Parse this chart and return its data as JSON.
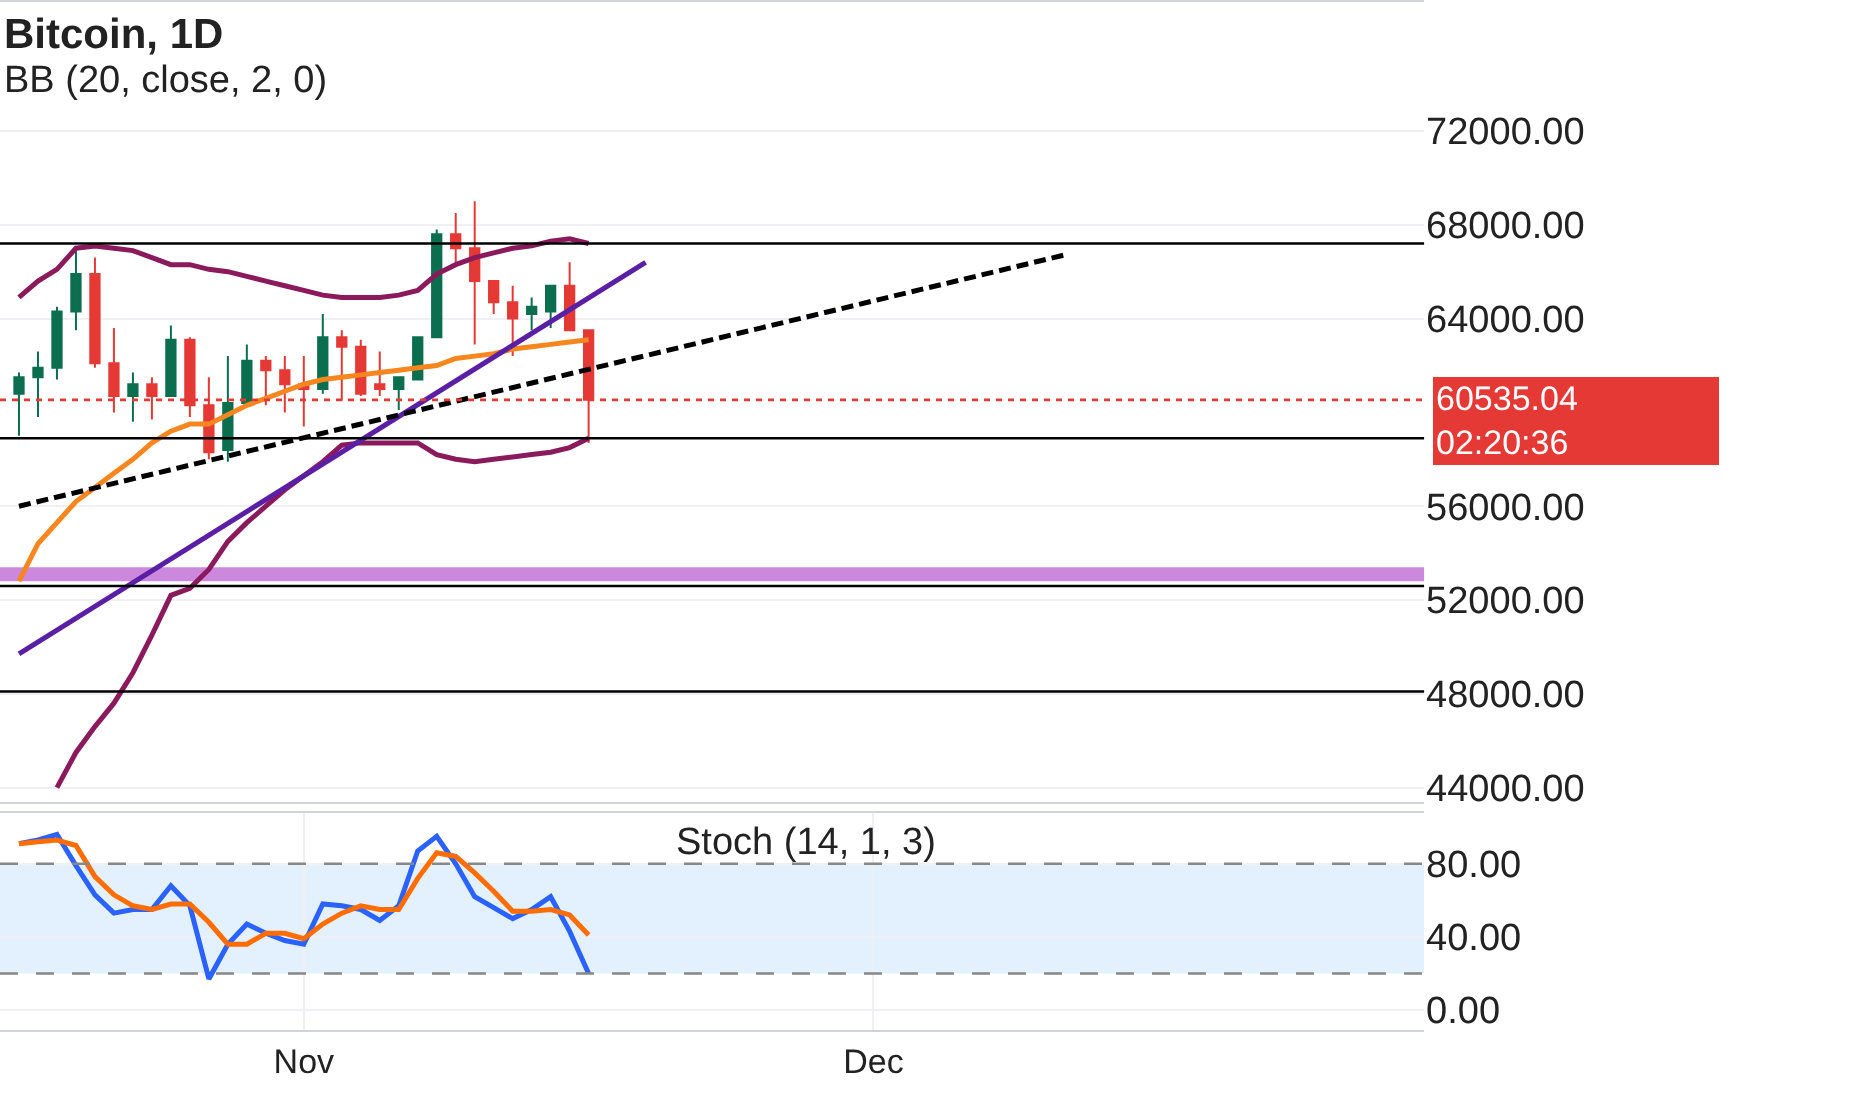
{
  "chart_data": [
    {
      "type": "candlestick",
      "title": "Bitcoin, 1D",
      "subtitle": "BB (20, close, 2, 0)",
      "x": [
        "--10-17",
        "--10-18",
        "--10-19",
        "--10-20",
        "--10-21",
        "--10-22",
        "--10-23",
        "--10-24",
        "--10-25",
        "--10-26",
        "--10-27",
        "--10-28",
        "--10-29",
        "--10-30",
        "--10-31",
        "--11-01",
        "--11-02",
        "--11-03",
        "--11-04",
        "--11-05",
        "--11-06",
        "--11-07",
        "--11-08",
        "--11-09",
        "--11-10",
        "--11-11",
        "--11-12",
        "--11-13",
        "--11-14",
        "--11-15",
        "--11-16"
      ],
      "ohlc": [
        [
          60800,
          61700,
          59000,
          61500
        ],
        [
          61500,
          62600,
          59800,
          61900
        ],
        [
          61900,
          64500,
          61400,
          64300
        ],
        [
          64300,
          67000,
          63500,
          65900
        ],
        [
          65900,
          66600,
          61900,
          62100
        ],
        [
          62100,
          63600,
          60000,
          60700
        ],
        [
          60700,
          61700,
          59600,
          61200
        ],
        [
          61200,
          61500,
          59700,
          60700
        ],
        [
          60700,
          63700,
          60700,
          63100
        ],
        [
          63100,
          63200,
          59800,
          60300
        ],
        [
          60300,
          61500,
          58000,
          58300
        ],
        [
          58400,
          62400,
          57900,
          60400
        ],
        [
          60400,
          62900,
          60300,
          62200
        ],
        [
          62200,
          62400,
          60300,
          61800
        ],
        [
          61800,
          62400,
          60000,
          61200
        ],
        [
          61200,
          62400,
          59400,
          61000
        ],
        [
          61000,
          64200,
          60800,
          63200
        ],
        [
          63200,
          63500,
          60500,
          62800
        ],
        [
          62800,
          63100,
          60700,
          60800
        ],
        [
          61200,
          62600,
          60700,
          61000
        ],
        [
          61000,
          61500,
          60100,
          61500
        ],
        [
          61400,
          63200,
          61400,
          63200
        ],
        [
          63200,
          67800,
          63200,
          67600
        ],
        [
          67600,
          68500,
          66300,
          67000
        ],
        [
          67000,
          69000,
          62900,
          65600
        ],
        [
          65600,
          65600,
          64200,
          64700
        ],
        [
          64700,
          65400,
          62400,
          64000
        ],
        [
          64200,
          64900,
          63500,
          64500
        ],
        [
          64300,
          65400,
          63600,
          65400
        ],
        [
          65400,
          66400,
          63500,
          63500
        ],
        [
          63500,
          63500,
          58700,
          60535
        ]
      ],
      "colors": [
        "#0b6e4f",
        "#0b6e4f",
        "#0b6e4f",
        "#0b6e4f",
        "#e53935",
        "#e53935",
        "#0b6e4f",
        "#e53935",
        "#0b6e4f",
        "#e53935",
        "#e53935",
        "#0b6e4f",
        "#0b6e4f",
        "#e53935",
        "#e53935",
        "#e53935",
        "#0b6e4f",
        "#e53935",
        "#e53935",
        "#e53935",
        "#0b6e4f",
        "#0b6e4f",
        "#0b6e4f",
        "#e53935",
        "#e53935",
        "#e53935",
        "#e53935",
        "#0b6e4f",
        "#0b6e4f",
        "#e53935",
        "#e53935"
      ],
      "series": [
        {
          "type": "line",
          "color": "#f7861e",
          "values": [
            52800,
            54400,
            55300,
            56200,
            56800,
            57400,
            58000,
            58700,
            59200,
            59500,
            59500,
            59900,
            60300,
            60600,
            60900,
            61200,
            61400,
            61500,
            61600,
            61700,
            61800,
            61900,
            62000,
            62300,
            62400,
            62500,
            62700,
            62800,
            62900,
            63000,
            63100
          ]
        },
        {
          "type": "line",
          "color": "#8b1a5c",
          "values": [
            64900,
            65600,
            66100,
            67000,
            67100,
            67000,
            66900,
            66600,
            66300,
            66300,
            66100,
            66000,
            65800,
            65600,
            65400,
            65200,
            65000,
            64900,
            64900,
            64900,
            65000,
            65200,
            65900,
            66300,
            66600,
            66800,
            67000,
            67100,
            67300,
            67400,
            67200
          ]
        },
        {
          "type": "line",
          "color": "#8b1a5c",
          "values": [
            null,
            null,
            44000,
            45500,
            46600,
            47600,
            48900,
            50500,
            52200,
            52500,
            53300,
            54500,
            55300,
            56000,
            56700,
            57300,
            57900,
            58600,
            58700,
            58700,
            58700,
            58700,
            58200,
            58000,
            57900,
            58000,
            58100,
            58200,
            58300,
            58500,
            58900
          ]
        },
        {
          "type": "line",
          "color": "#5b1fa6",
          "x": [
            "--10-17",
            "--11-19"
          ],
          "values": [
            49700,
            66400
          ]
        },
        {
          "type": "line",
          "color": "#000000",
          "line_style": "dashed",
          "x": [
            "--10-17",
            "--12-11"
          ],
          "values": [
            56000,
            66700
          ]
        }
      ],
      "ref_lines": [
        {
          "axis": "y",
          "value": 67200,
          "color": "#000000"
        },
        {
          "axis": "y",
          "value": 58900,
          "color": "#000000"
        },
        {
          "axis": "y",
          "value": 52600,
          "color": "#000000"
        },
        {
          "axis": "y",
          "value": 48100,
          "color": "#000000"
        },
        {
          "axis": "y",
          "value": 60535.04,
          "label": "60535.04",
          "color": "#e53935",
          "line_style": "dotted"
        }
      ],
      "bands": [
        {
          "axis": "y",
          "from": 52800,
          "to": 53400,
          "color": "#cc88dd"
        }
      ],
      "annotations": [
        "02:20:36"
      ],
      "xlim": [
        "--10-16",
        "--12-30"
      ],
      "ylim": [
        43400,
        77500
      ],
      "yticks": [
        {
          "value": 44000,
          "label": "44000.00"
        },
        {
          "value": 48000,
          "label": "48000.00"
        },
        {
          "value": 52000,
          "label": "52000.00"
        },
        {
          "value": 56000,
          "label": "56000.00"
        },
        {
          "value": 64000,
          "label": "64000.00"
        },
        {
          "value": 68000,
          "label": "68000.00"
        },
        {
          "value": 72000,
          "label": "72000.00"
        }
      ],
      "tick_labels": "y",
      "grid": true
    },
    {
      "type": "line",
      "title": "Stoch (14, 1, 3)",
      "x": [
        "--10-17",
        "--10-18",
        "--10-19",
        "--10-20",
        "--10-21",
        "--10-22",
        "--10-23",
        "--10-24",
        "--10-25",
        "--10-26",
        "--10-27",
        "--10-28",
        "--10-29",
        "--10-30",
        "--10-31",
        "--11-01",
        "--11-02",
        "--11-03",
        "--11-04",
        "--11-05",
        "--11-06",
        "--11-07",
        "--11-08",
        "--11-09",
        "--11-10",
        "--11-11",
        "--11-12",
        "--11-13",
        "--11-14",
        "--11-15",
        "--11-16"
      ],
      "series": [
        {
          "color": "#2962ff",
          "values": [
            91,
            93,
            96,
            79,
            63,
            53,
            55,
            55,
            68,
            57,
            17,
            36,
            47,
            42,
            38,
            36,
            58,
            57,
            55,
            49,
            57,
            87,
            95,
            80,
            62,
            56,
            50,
            55,
            62,
            43,
            20
          ]
        },
        {
          "color": "#ff6d00",
          "values": [
            91,
            92,
            93,
            90,
            73,
            63,
            57,
            55,
            58,
            58,
            48,
            36,
            36,
            42,
            42,
            39,
            47,
            53,
            57,
            55,
            55,
            72,
            86,
            84,
            75,
            65,
            54,
            54,
            55,
            52,
            41
          ]
        }
      ],
      "bands": [
        {
          "axis": "y",
          "from": 20,
          "to": 80,
          "color": "#e3f0fd"
        }
      ],
      "ref_lines": [
        {
          "axis": "y",
          "value": 80,
          "color": "#888888",
          "line_style": "dashed"
        },
        {
          "axis": "y",
          "value": 20,
          "color": "#888888",
          "line_style": "dashed"
        }
      ],
      "xlim": [
        "--10-16",
        "--12-30"
      ],
      "xticks": [
        {
          "value": "--11-01",
          "label": "Nov"
        },
        {
          "value": "--12-01",
          "label": "Dec"
        }
      ],
      "ylim": [
        -11,
        108
      ],
      "yticks": [
        {
          "value": 0,
          "label": "0.00"
        },
        {
          "value": 40,
          "label": "40.00"
        },
        {
          "value": 80,
          "label": "80.00"
        }
      ],
      "grid": true
    }
  ]
}
